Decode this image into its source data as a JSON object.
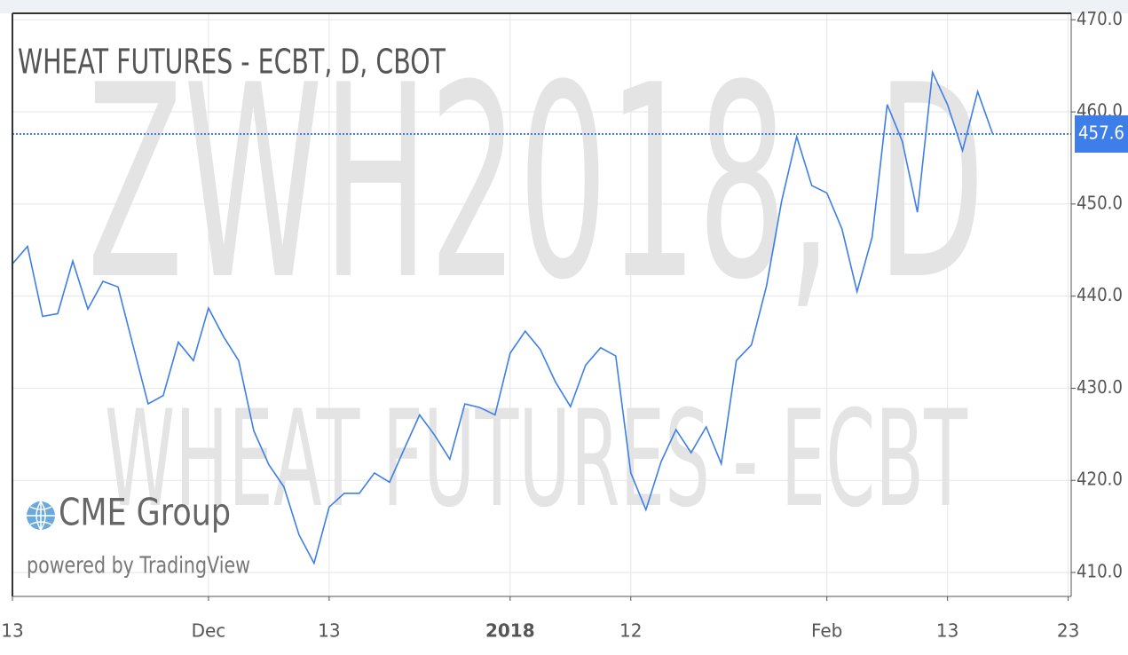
{
  "chart_data": {
    "type": "line",
    "title": "WHEAT FUTURES - ECBT, D, CBOT",
    "watermark": "ZWH2018, D",
    "watermark_subtitle": "WHEAT FUTURES - ECBT",
    "logo": "CME Group",
    "credit": "powered by TradingView",
    "color": "#3d7ee8",
    "grid": true,
    "last_value": 457.6,
    "values": [
      443.5,
      445.4,
      437.8,
      438.1,
      443.8,
      438.6,
      441.6,
      441.0,
      434.6,
      428.3,
      429.2,
      435.0,
      433.0,
      438.7,
      435.6,
      433.0,
      425.4,
      421.7,
      419.3,
      414.1,
      411.0,
      417.1,
      418.6,
      418.6,
      420.8,
      419.8,
      423.5,
      427.1,
      424.9,
      422.3,
      428.3,
      427.9,
      427.1,
      433.8,
      436.2,
      434.2,
      430.7,
      428.0,
      432.5,
      434.4,
      433.5,
      420.8,
      416.8,
      422.0,
      425.5,
      423.0,
      425.8,
      421.8,
      433.0,
      434.7,
      441.1,
      450.3,
      457.3,
      452.0,
      451.2,
      447.3,
      440.5,
      446.4,
      460.8,
      456.8,
      449.1,
      464.3,
      460.8,
      455.8,
      462.2,
      457.6
    ],
    "xlim": [
      0,
      70.2
    ],
    "xticks": [
      {
        "value": 0,
        "label": "13"
      },
      {
        "value": 13,
        "label": "Dec"
      },
      {
        "value": 21,
        "label": "13"
      },
      {
        "value": 33,
        "label": "2018",
        "bold": true
      },
      {
        "value": 41,
        "label": "12"
      },
      {
        "value": 54,
        "label": "Feb"
      },
      {
        "value": 62,
        "label": "13"
      },
      {
        "value": 70,
        "label": "23"
      }
    ],
    "ylim": [
      407.4,
      470.7
    ],
    "yticks": [
      {
        "value": 410,
        "label": "410.0"
      },
      {
        "value": 420,
        "label": "420.0"
      },
      {
        "value": 430,
        "label": "430.0"
      },
      {
        "value": 440,
        "label": "440.0"
      },
      {
        "value": 450,
        "label": "450.0"
      },
      {
        "value": 460,
        "label": "460.0"
      },
      {
        "value": 470,
        "label": "470.0"
      }
    ]
  }
}
